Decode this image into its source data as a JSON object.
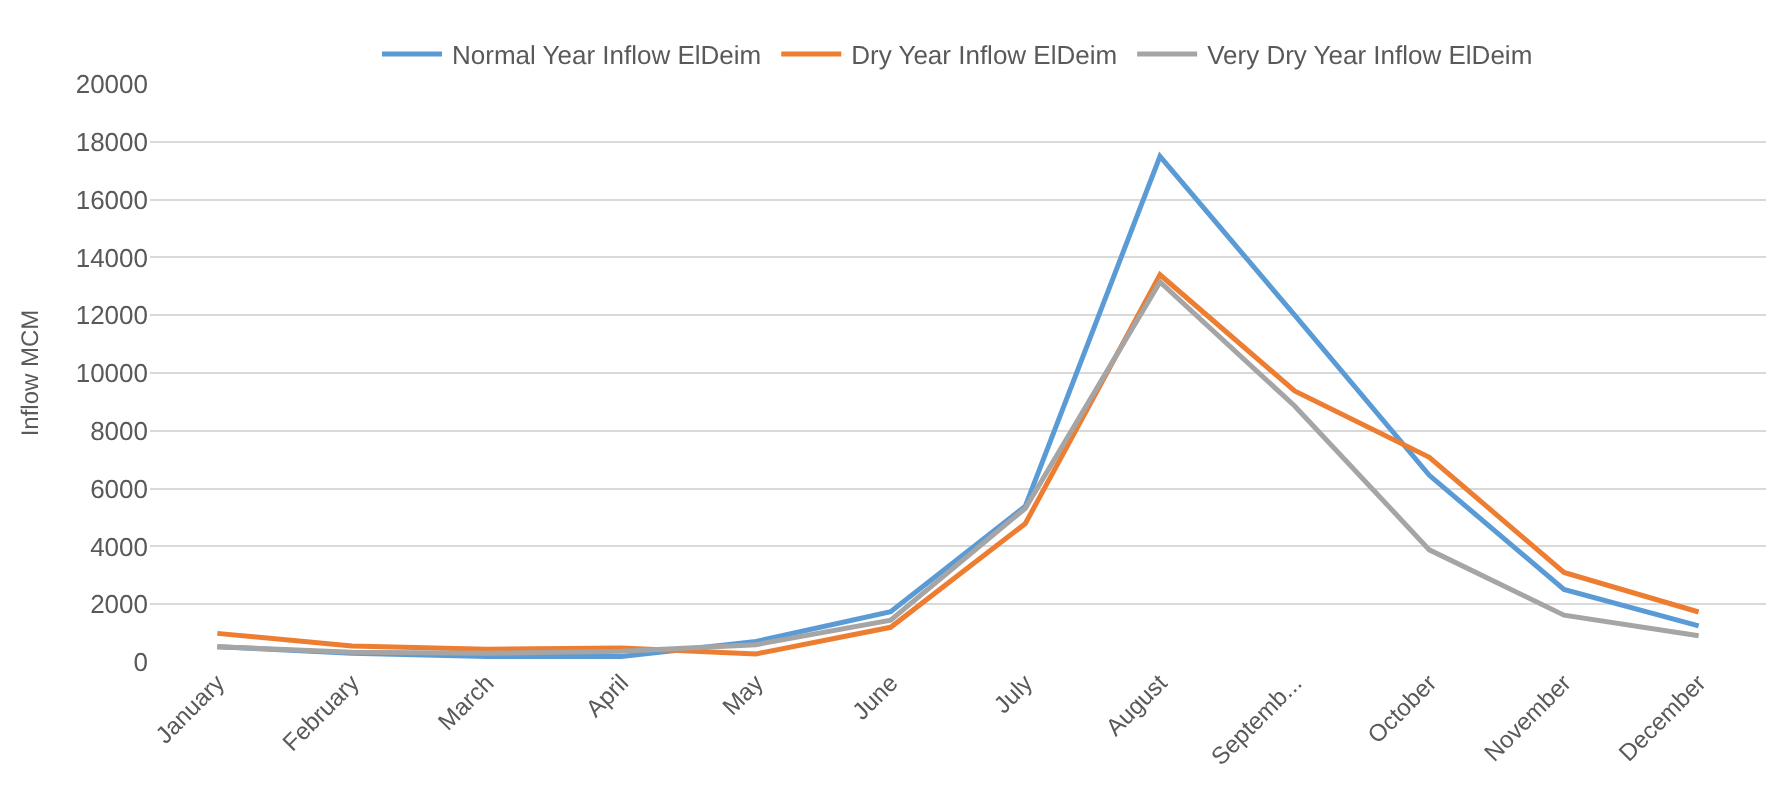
{
  "chart_data": {
    "type": "line",
    "ylabel": "Inflow MCM",
    "categories": [
      "January",
      "February",
      "March",
      "April",
      "May",
      "June",
      "July",
      "August",
      "Septemb...",
      "October",
      "November",
      "December"
    ],
    "series": [
      {
        "name": "Normal Year Inflow ElDeim",
        "color": "#5b9bd5",
        "values": [
          530,
          300,
          190,
          190,
          710,
          1740,
          5390,
          17500,
          12000,
          6460,
          2510,
          1250
        ]
      },
      {
        "name": "Dry Year Inflow ElDeim",
        "color": "#ed7d31",
        "values": [
          990,
          550,
          440,
          480,
          280,
          1200,
          4790,
          13400,
          9380,
          7080,
          3100,
          1730
        ]
      },
      {
        "name": "Very Dry Year Inflow ElDeim",
        "color": "#a5a5a5",
        "values": [
          530,
          340,
          300,
          370,
          600,
          1450,
          5320,
          13150,
          8860,
          3880,
          1620,
          910
        ]
      }
    ],
    "ylim": [
      0,
      20000
    ],
    "yticks": [
      0,
      2000,
      4000,
      6000,
      8000,
      10000,
      12000,
      14000,
      16000,
      18000,
      20000
    ],
    "grid": "y",
    "legend": "top",
    "marker": "none",
    "line_style": "solid"
  }
}
